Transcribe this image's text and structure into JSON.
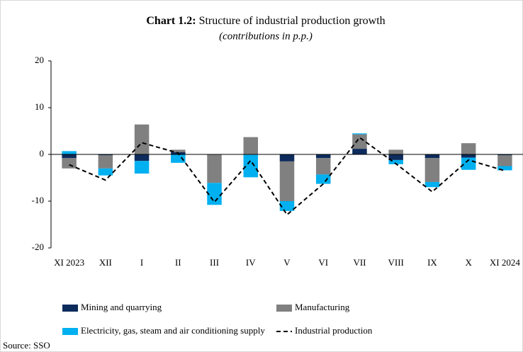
{
  "chart_data": {
    "type": "bar",
    "title_label": "Chart 1.2:",
    "title": "Structure of industrial production growth",
    "subtitle": "(contributions in p.p.)",
    "source": "Source: SSO",
    "categories": [
      "XI 2023",
      "XII",
      "I",
      "II",
      "III",
      "IV",
      "V",
      "VI",
      "VII",
      "VIII",
      "IX",
      "X",
      "XI 2024"
    ],
    "series": [
      {
        "name": "Mining and quarrying",
        "color": "#0d2b5c",
        "values": [
          -0.8,
          -0.2,
          -1.4,
          0.5,
          -0.1,
          -0.1,
          -1.5,
          -0.8,
          1.2,
          -1.2,
          -0.8,
          -0.7,
          -0.2
        ]
      },
      {
        "name": "Manufacturing",
        "color": "#808080",
        "values": [
          -2.2,
          -2.8,
          6.4,
          0.5,
          -6.0,
          3.7,
          -8.5,
          -3.5,
          3.1,
          1.0,
          -5.1,
          2.4,
          -2.3
        ]
      },
      {
        "name": "Electricity, gas, steam and air conditioning supply",
        "color": "#00b0f0",
        "values": [
          0.7,
          -1.5,
          -2.7,
          -1.8,
          -4.7,
          -4.8,
          -2.1,
          -2.0,
          0.2,
          -0.9,
          -1.1,
          -2.6,
          -0.9
        ]
      },
      {
        "name": "Industrial production",
        "type": "line",
        "color": "#000000",
        "values": [
          -2.2,
          -5.5,
          2.5,
          0.3,
          -10.2,
          -1.3,
          -12.9,
          -6.3,
          3.6,
          -2.0,
          -8.0,
          -1.2,
          -3.5
        ]
      }
    ],
    "stacked": true,
    "ylim": [
      -20,
      20
    ],
    "yticks": [
      -20,
      -10,
      0,
      10,
      20
    ]
  }
}
